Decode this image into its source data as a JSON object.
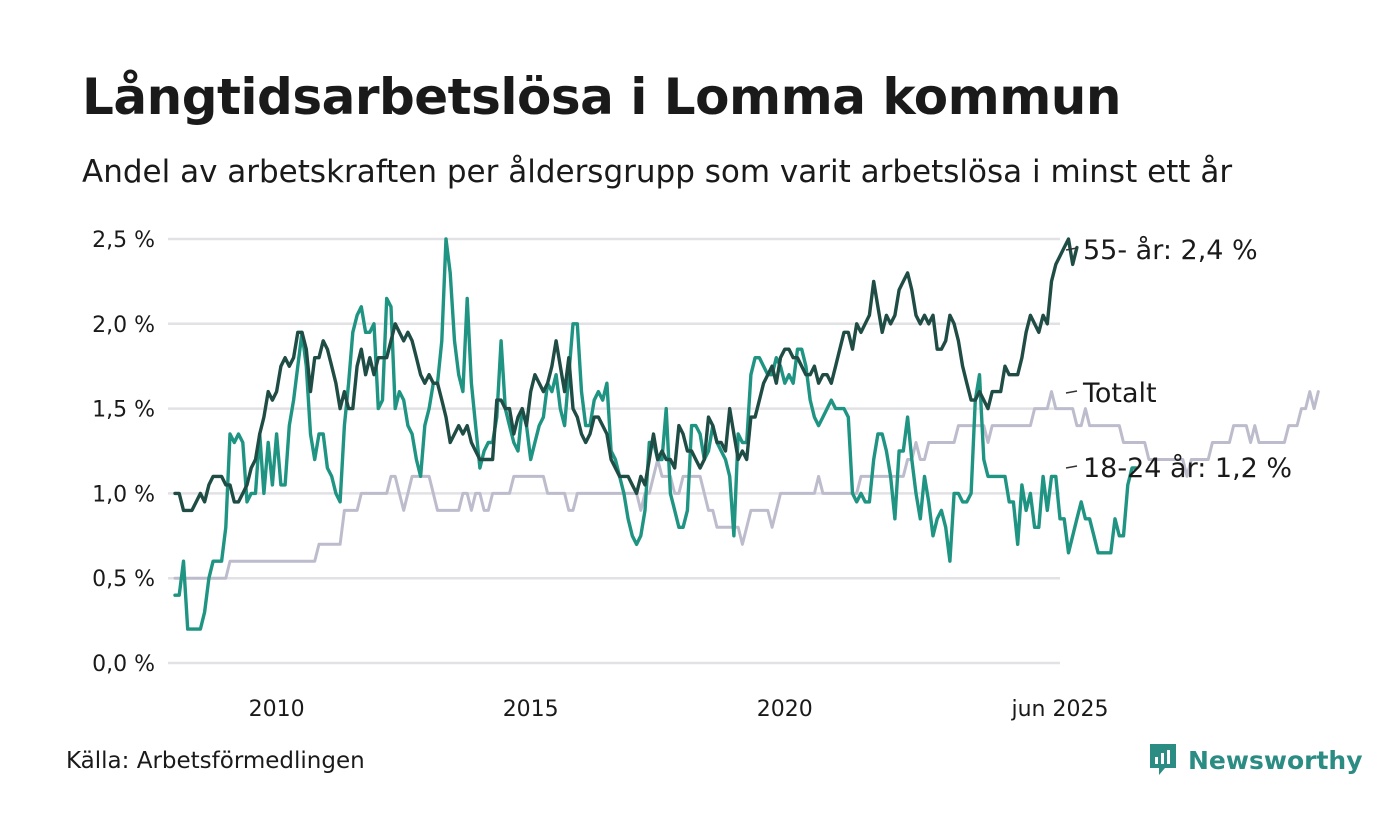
{
  "header": {
    "title": "Långtidsarbetslösa i Lomma kommun",
    "subtitle": "Andel av arbetskraften per åldersgrupp som varit arbetslösa i minst ett år"
  },
  "footer": {
    "source": "Källa: Arbetsförmedlingen",
    "brand": "Newsworthy",
    "brand_icon": "newsworthy-logo-icon"
  },
  "chart_data": {
    "type": "line",
    "title": "Långtidsarbetslösa i Lomma kommun",
    "subtitle": "Andel av arbetskraften per åldersgrupp som varit arbetslösa i minst ett år",
    "x_start": "2008-01",
    "x_end": "2025-06",
    "x_ticks": [
      "2010",
      "2015",
      "2020",
      "jun 2025"
    ],
    "ylim": [
      0,
      2.5
    ],
    "y_ticks": [
      "0,0 %",
      "0,5 %",
      "1,0 %",
      "1,5 %",
      "2,0 %",
      "2,5 %"
    ],
    "grid": true,
    "colors": {
      "55plus": "#1f4d45",
      "total": "#bdbccc",
      "young": "#1f9483",
      "grid": "#e2e2e6"
    },
    "series": [
      {
        "key": "total",
        "label": "Totalt",
        "values": [
          0.5,
          0.5,
          0.5,
          0.5,
          0.5,
          0.5,
          0.5,
          0.5,
          0.5,
          0.5,
          0.5,
          0.5,
          0.5,
          0.6,
          0.6,
          0.6,
          0.6,
          0.6,
          0.6,
          0.6,
          0.6,
          0.6,
          0.6,
          0.6,
          0.6,
          0.6,
          0.6,
          0.6,
          0.6,
          0.6,
          0.6,
          0.6,
          0.6,
          0.6,
          0.7,
          0.7,
          0.7,
          0.7,
          0.7,
          0.7,
          0.9,
          0.9,
          0.9,
          0.9,
          1.0,
          1.0,
          1.0,
          1.0,
          1.0,
          1.0,
          1.0,
          1.1,
          1.1,
          1.0,
          0.9,
          1.0,
          1.1,
          1.1,
          1.1,
          1.1,
          1.1,
          1.0,
          0.9,
          0.9,
          0.9,
          0.9,
          0.9,
          0.9,
          1.0,
          1.0,
          0.9,
          1.0,
          1.0,
          0.9,
          0.9,
          1.0,
          1.0,
          1.0,
          1.0,
          1.0,
          1.1,
          1.1,
          1.1,
          1.1,
          1.1,
          1.1,
          1.1,
          1.1,
          1.0,
          1.0,
          1.0,
          1.0,
          1.0,
          0.9,
          0.9,
          1.0,
          1.0,
          1.0,
          1.0,
          1.0,
          1.0,
          1.0,
          1.0,
          1.0,
          1.0,
          1.0,
          1.0,
          1.0,
          1.0,
          1.0,
          0.9,
          1.0,
          1.0,
          1.1,
          1.2,
          1.1,
          1.1,
          1.1,
          1.0,
          1.0,
          1.1,
          1.1,
          1.1,
          1.1,
          1.1,
          1.0,
          0.9,
          0.9,
          0.8,
          0.8,
          0.8,
          0.8,
          0.8,
          0.8,
          0.7,
          0.8,
          0.9,
          0.9,
          0.9,
          0.9,
          0.9,
          0.8,
          0.9,
          1.0,
          1.0,
          1.0,
          1.0,
          1.0,
          1.0,
          1.0,
          1.0,
          1.0,
          1.1,
          1.0,
          1.0,
          1.0,
          1.0,
          1.0,
          1.0,
          1.0,
          1.0,
          1.0,
          1.1,
          1.1,
          1.1,
          1.1,
          1.1,
          1.1,
          1.1,
          1.1,
          1.1,
          1.1,
          1.1,
          1.2,
          1.2,
          1.3,
          1.2,
          1.2,
          1.3,
          1.3,
          1.3,
          1.3,
          1.3,
          1.3,
          1.3,
          1.4,
          1.4,
          1.4,
          1.4,
          1.4,
          1.4,
          1.4,
          1.3,
          1.4,
          1.4,
          1.4,
          1.4,
          1.4,
          1.4,
          1.4,
          1.4,
          1.4,
          1.4,
          1.5,
          1.5,
          1.5,
          1.5,
          1.6,
          1.5,
          1.5,
          1.5,
          1.5,
          1.5,
          1.4,
          1.4,
          1.5,
          1.4,
          1.4,
          1.4,
          1.4,
          1.4,
          1.4,
          1.4,
          1.4,
          1.3,
          1.3,
          1.3,
          1.3,
          1.3,
          1.3,
          1.2,
          1.2,
          1.2,
          1.2,
          1.2,
          1.2,
          1.2,
          1.2,
          1.2,
          1.1,
          1.2,
          1.2,
          1.2,
          1.2,
          1.2,
          1.3,
          1.3,
          1.3,
          1.3,
          1.3,
          1.4,
          1.4,
          1.4,
          1.4,
          1.3,
          1.4,
          1.3,
          1.3,
          1.3,
          1.3,
          1.3,
          1.3,
          1.3,
          1.4,
          1.4,
          1.4,
          1.5,
          1.5,
          1.6,
          1.5,
          1.6
        ]
      },
      {
        "key": "young",
        "label": "18-24 år: 1,2 %",
        "values": [
          0.4,
          0.4,
          0.6,
          0.2,
          0.2,
          0.2,
          0.2,
          0.3,
          0.5,
          0.6,
          0.6,
          0.6,
          0.8,
          1.35,
          1.3,
          1.35,
          1.3,
          0.95,
          1.0,
          1.0,
          1.35,
          1.0,
          1.3,
          1.05,
          1.35,
          1.05,
          1.05,
          1.4,
          1.55,
          1.75,
          1.95,
          1.75,
          1.35,
          1.2,
          1.35,
          1.35,
          1.15,
          1.1,
          1.0,
          0.95,
          1.4,
          1.65,
          1.95,
          2.05,
          2.1,
          1.95,
          1.95,
          2.0,
          1.5,
          1.55,
          2.15,
          2.1,
          1.5,
          1.6,
          1.55,
          1.4,
          1.35,
          1.2,
          1.1,
          1.4,
          1.5,
          1.65,
          1.65,
          1.9,
          2.5,
          2.3,
          1.9,
          1.7,
          1.6,
          2.15,
          1.65,
          1.4,
          1.15,
          1.25,
          1.3,
          1.3,
          1.45,
          1.9,
          1.5,
          1.4,
          1.3,
          1.25,
          1.5,
          1.4,
          1.2,
          1.3,
          1.4,
          1.45,
          1.65,
          1.6,
          1.7,
          1.5,
          1.4,
          1.7,
          2.0,
          2.0,
          1.6,
          1.4,
          1.4,
          1.55,
          1.6,
          1.55,
          1.65,
          1.25,
          1.2,
          1.1,
          1.0,
          0.85,
          0.75,
          0.7,
          0.75,
          0.9,
          1.3,
          1.3,
          1.2,
          1.2,
          1.5,
          1.0,
          0.9,
          0.8,
          0.8,
          0.9,
          1.4,
          1.4,
          1.35,
          1.2,
          1.25,
          1.4,
          1.3,
          1.25,
          1.2,
          1.1,
          0.75,
          1.35,
          1.3,
          1.3,
          1.7,
          1.8,
          1.8,
          1.75,
          1.7,
          1.7,
          1.8,
          1.75,
          1.65,
          1.7,
          1.65,
          1.85,
          1.85,
          1.75,
          1.55,
          1.45,
          1.4,
          1.45,
          1.5,
          1.55,
          1.5,
          1.5,
          1.5,
          1.45,
          1.0,
          0.95,
          1.0,
          0.95,
          0.95,
          1.2,
          1.35,
          1.35,
          1.25,
          1.1,
          0.85,
          1.25,
          1.25,
          1.45,
          1.2,
          1.0,
          0.85,
          1.1,
          0.95,
          0.75,
          0.85,
          0.9,
          0.8,
          0.6,
          1.0,
          1.0,
          0.95,
          0.95,
          1.0,
          1.55,
          1.7,
          1.2,
          1.1,
          1.1,
          1.1,
          1.1,
          1.1,
          0.95,
          0.95,
          0.7,
          1.05,
          0.9,
          1.0,
          0.8,
          0.8,
          1.1,
          0.9,
          1.1,
          1.1,
          0.85,
          0.85,
          0.65,
          0.75,
          0.85,
          0.95,
          0.85,
          0.85,
          0.75,
          0.65,
          0.65,
          0.65,
          0.65,
          0.85,
          0.75,
          0.75,
          1.05,
          1.15,
          1.15
        ]
      },
      {
        "key": "55plus",
        "label": "55- år: 2,4 %",
        "values": [
          1.0,
          1.0,
          0.9,
          0.9,
          0.9,
          0.95,
          1.0,
          0.95,
          1.05,
          1.1,
          1.1,
          1.1,
          1.05,
          1.05,
          0.95,
          0.95,
          1.0,
          1.05,
          1.15,
          1.2,
          1.35,
          1.45,
          1.6,
          1.55,
          1.6,
          1.75,
          1.8,
          1.75,
          1.8,
          1.95,
          1.95,
          1.85,
          1.6,
          1.8,
          1.8,
          1.9,
          1.85,
          1.75,
          1.65,
          1.5,
          1.6,
          1.5,
          1.5,
          1.75,
          1.85,
          1.7,
          1.8,
          1.7,
          1.8,
          1.8,
          1.8,
          1.9,
          2.0,
          1.95,
          1.9,
          1.95,
          1.9,
          1.8,
          1.7,
          1.65,
          1.7,
          1.65,
          1.65,
          1.55,
          1.45,
          1.3,
          1.35,
          1.4,
          1.35,
          1.4,
          1.3,
          1.25,
          1.2,
          1.2,
          1.2,
          1.2,
          1.55,
          1.55,
          1.5,
          1.5,
          1.35,
          1.45,
          1.5,
          1.4,
          1.6,
          1.7,
          1.65,
          1.6,
          1.65,
          1.75,
          1.9,
          1.75,
          1.6,
          1.8,
          1.5,
          1.45,
          1.35,
          1.3,
          1.35,
          1.45,
          1.45,
          1.4,
          1.35,
          1.2,
          1.15,
          1.1,
          1.1,
          1.1,
          1.05,
          1.0,
          1.1,
          1.05,
          1.2,
          1.35,
          1.2,
          1.25,
          1.2,
          1.2,
          1.15,
          1.4,
          1.35,
          1.25,
          1.25,
          1.2,
          1.15,
          1.2,
          1.45,
          1.4,
          1.3,
          1.3,
          1.25,
          1.5,
          1.35,
          1.2,
          1.25,
          1.2,
          1.45,
          1.45,
          1.55,
          1.65,
          1.7,
          1.75,
          1.65,
          1.8,
          1.85,
          1.85,
          1.8,
          1.8,
          1.75,
          1.7,
          1.7,
          1.75,
          1.65,
          1.7,
          1.7,
          1.65,
          1.75,
          1.85,
          1.95,
          1.95,
          1.85,
          2.0,
          1.95,
          2.0,
          2.05,
          2.25,
          2.1,
          1.95,
          2.05,
          2.0,
          2.05,
          2.2,
          2.25,
          2.3,
          2.2,
          2.05,
          2.0,
          2.05,
          2.0,
          2.05,
          1.85,
          1.85,
          1.9,
          2.05,
          2.0,
          1.9,
          1.75,
          1.65,
          1.55,
          1.55,
          1.6,
          1.55,
          1.5,
          1.6,
          1.6,
          1.6,
          1.75,
          1.7,
          1.7,
          1.7,
          1.8,
          1.95,
          2.05,
          2.0,
          1.95,
          2.05,
          2.0,
          2.25,
          2.35,
          2.4,
          2.45,
          2.5,
          2.35,
          2.45
        ]
      }
    ]
  }
}
